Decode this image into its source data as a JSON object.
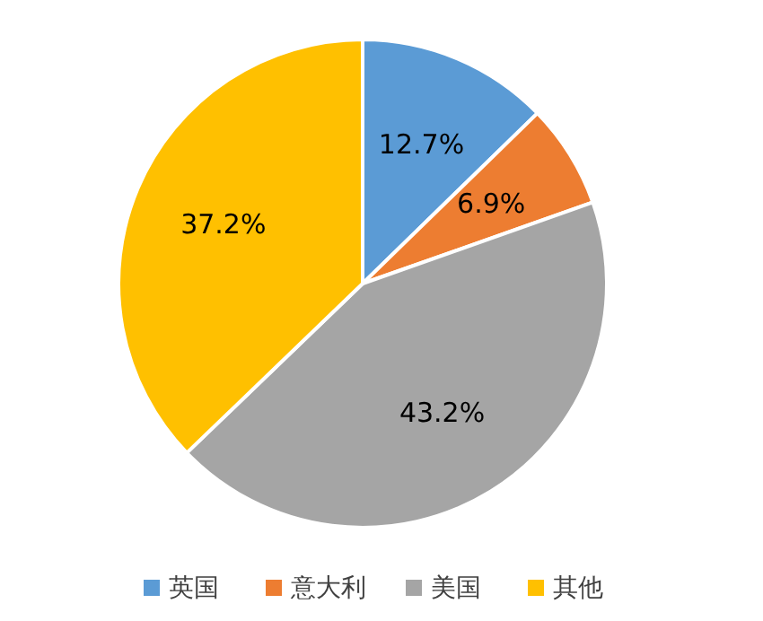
{
  "chart_data": {
    "type": "pie",
    "categories": [
      "英国",
      "意大利",
      "美国",
      "其他"
    ],
    "values": [
      12.7,
      6.9,
      43.2,
      37.2
    ],
    "colors": [
      "#5b9bd5",
      "#ed7d31",
      "#a5a5a5",
      "#ffc000"
    ],
    "value_labels": [
      "12.7%",
      "6.9%",
      "43.2%",
      "37.2%"
    ],
    "legend": "bottom"
  }
}
